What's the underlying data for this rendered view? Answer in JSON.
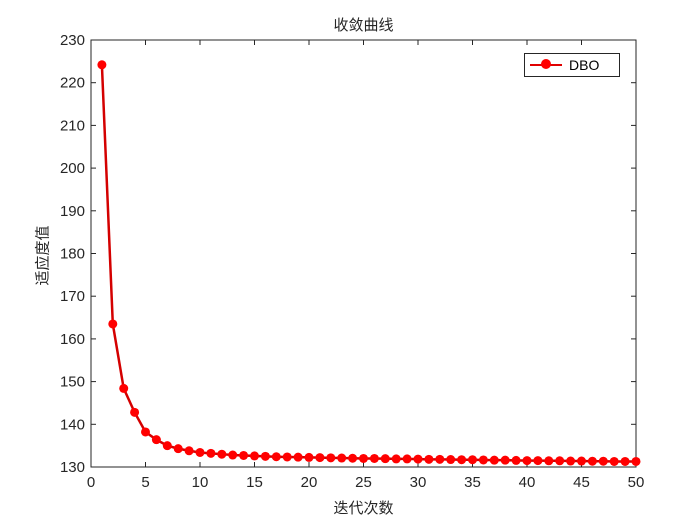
{
  "chart_data": {
    "type": "line",
    "title": "收敛曲线",
    "xlabel": "迭代次数",
    "ylabel": "适应度值",
    "xlim": [
      0,
      50
    ],
    "ylim": [
      130,
      230
    ],
    "xticks": [
      0,
      5,
      10,
      15,
      20,
      25,
      30,
      35,
      40,
      45,
      50
    ],
    "yticks": [
      130,
      140,
      150,
      160,
      170,
      180,
      190,
      200,
      210,
      220,
      230
    ],
    "grid": false,
    "legend_position": "upper right",
    "series": [
      {
        "name": "DBO",
        "color": "#ff0000",
        "marker": "asterisk",
        "x": [
          1,
          2,
          3,
          4,
          5,
          6,
          7,
          8,
          9,
          10,
          11,
          12,
          13,
          14,
          15,
          16,
          17,
          18,
          19,
          20,
          21,
          22,
          23,
          24,
          25,
          26,
          27,
          28,
          29,
          30,
          31,
          32,
          33,
          34,
          35,
          36,
          37,
          38,
          39,
          40,
          41,
          42,
          43,
          44,
          45,
          46,
          47,
          48,
          49,
          50
        ],
        "values": [
          224.2,
          163.5,
          148.4,
          142.8,
          138.2,
          136.4,
          135.0,
          134.3,
          133.8,
          133.4,
          133.2,
          133.0,
          132.8,
          132.7,
          132.6,
          132.5,
          132.4,
          132.35,
          132.3,
          132.25,
          132.2,
          132.15,
          132.1,
          132.05,
          132.0,
          132.0,
          131.95,
          131.9,
          131.9,
          131.85,
          131.8,
          131.8,
          131.75,
          131.7,
          131.7,
          131.65,
          131.6,
          131.6,
          131.55,
          131.5,
          131.5,
          131.45,
          131.45,
          131.4,
          131.4,
          131.35,
          131.35,
          131.3,
          131.3,
          131.3
        ]
      }
    ]
  }
}
